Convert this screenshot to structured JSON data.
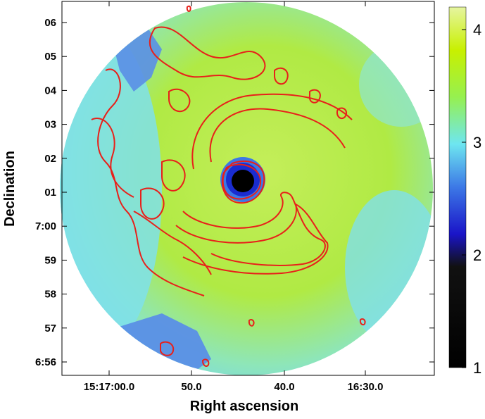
{
  "chart_data": {
    "type": "heatmap",
    "xlabel": "Right ascension",
    "ylabel": "Declination",
    "x_ticks": [
      "15:17:00.0",
      "50.0",
      "40.0",
      "16:30.0"
    ],
    "y_ticks": [
      "06",
      "05",
      "04",
      "03",
      "02",
      "01",
      "7:00",
      "59",
      "58",
      "57",
      "6:56"
    ],
    "colorbar": {
      "ticks": [
        "4",
        "3",
        "2",
        "1"
      ],
      "range": [
        1,
        4.2
      ],
      "colors": [
        "#000000",
        "#1a14c8",
        "#3c78e6",
        "#6ee6f0",
        "#96f050",
        "#c8f000",
        "#e6f5a0"
      ]
    },
    "grid": false,
    "overlay": "red contours",
    "colors": {
      "contour": "#e8201a",
      "sky_background": "#7fe3e8",
      "green_region": "#b4eb3c",
      "blue_region": "#5a8fe6",
      "core": "#000000"
    }
  }
}
